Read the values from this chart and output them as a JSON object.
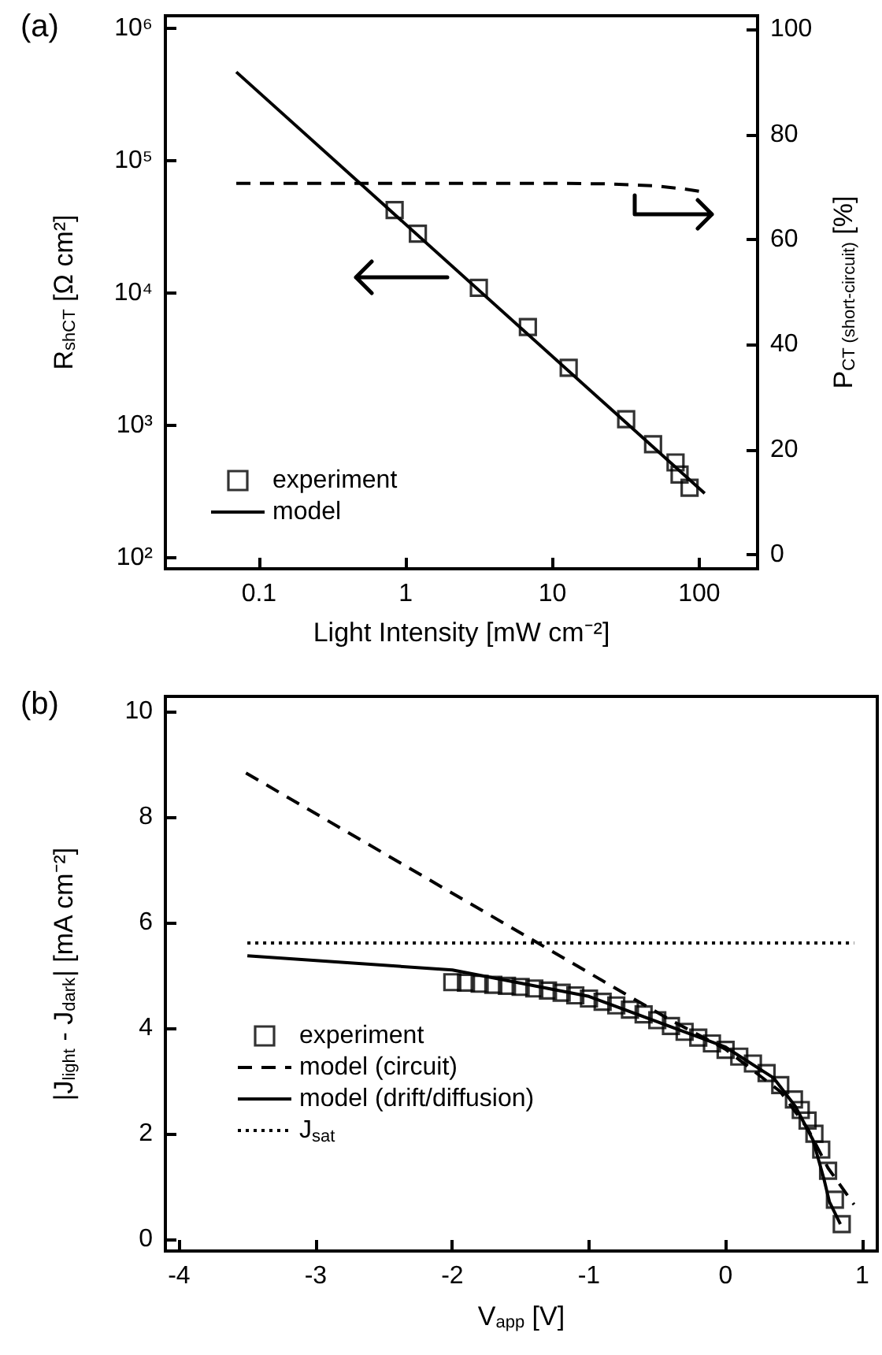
{
  "chart_data": [
    {
      "type": "line",
      "title": "(a)",
      "xlabel": "Light Intensity [mW cm⁻²]",
      "ylabel": "R$_{shCT}$ [Ω cm²]",
      "y2label": "P$_{CT (short-circuit)}$ [%]",
      "log": "xy",
      "grid": false,
      "legend": "bottom left",
      "xlim": [
        0.023,
        250
      ],
      "xticks": [
        0.1,
        1,
        10,
        100
      ],
      "ylim": [
        83,
        1250000
      ],
      "yticks": [
        {
          "value": 100,
          "label": "10²"
        },
        {
          "value": 1000,
          "label": "10³"
        },
        {
          "value": 10000,
          "label": "10⁴"
        },
        {
          "value": 100000,
          "label": "10⁵"
        },
        {
          "value": 1000000,
          "label": "10⁶"
        }
      ],
      "y2lim": [
        -2.7,
        102.6
      ],
      "y2ticks": [
        0,
        20,
        40,
        60,
        80,
        100
      ],
      "series": [
        {
          "name": "experiment",
          "type": "scatter",
          "marker": "square",
          "color": "#000000",
          "x": [
            0.84,
            1.21,
            3.15,
            6.8,
            12.9,
            31.8,
            48.5,
            69,
            73.5,
            86
          ],
          "values": [
            42600,
            28200,
            11000,
            5560,
            2740,
            1120,
            724,
            528,
            427,
            340
          ]
        },
        {
          "name": "model",
          "line_style": "solid",
          "color": "#000000",
          "x": [
            0.07,
            109
          ],
          "values": [
            470000,
            308
          ]
        },
        {
          "axis": "y2",
          "line_style": "dashed",
          "color": "#000000",
          "x": [
            0.07,
            10,
            22.5,
            50,
            80,
            109
          ],
          "values": [
            70.7,
            70.7,
            70.6,
            70.2,
            69.6,
            69
          ]
        }
      ]
    },
    {
      "type": "line",
      "title": "(b)",
      "xlabel": "V$_{app}$ [V]",
      "ylabel": "|J$_{light}$ - J$_{dark}$| [mA cm⁻²]",
      "grid": false,
      "legend": "bottom left",
      "xlim": [
        -4.1,
        1.11
      ],
      "xticks": [
        -4,
        -3,
        -2,
        -1,
        0,
        1
      ],
      "ylim": [
        -0.22,
        10.28
      ],
      "yticks": [
        0,
        2,
        4,
        6,
        8,
        10
      ],
      "series": [
        {
          "name": "experiment",
          "type": "scatter",
          "marker": "square",
          "color": "#000000",
          "x": [
            -2.0,
            -1.9,
            -1.8,
            -1.7,
            -1.6,
            -1.5,
            -1.4,
            -1.3,
            -1.2,
            -1.1,
            -1.0,
            -0.9,
            -0.8,
            -0.7,
            -0.6,
            -0.5,
            -0.4,
            -0.3,
            -0.2,
            -0.1,
            0.0,
            0.1,
            0.2,
            0.3,
            0.4,
            0.5,
            0.55,
            0.6,
            0.65,
            0.7,
            0.75,
            0.8,
            0.85
          ],
          "values": [
            4.87,
            4.86,
            4.84,
            4.82,
            4.8,
            4.78,
            4.75,
            4.71,
            4.67,
            4.62,
            4.56,
            4.5,
            4.43,
            4.35,
            4.26,
            4.15,
            4.04,
            3.93,
            3.82,
            3.71,
            3.59,
            3.46,
            3.33,
            3.15,
            2.92,
            2.65,
            2.45,
            2.25,
            2.0,
            1.7,
            1.3,
            0.75,
            0.29
          ]
        },
        {
          "name": "model (circuit)",
          "line_style": "dashed",
          "color": "#000000",
          "x": [
            -3.51,
            -0.67,
            -0.4,
            0.0,
            0.4,
            0.6,
            0.75,
            0.94
          ],
          "values": [
            8.83,
            4.55,
            4.15,
            3.6,
            2.8,
            2.1,
            1.35,
            0.66
          ]
        },
        {
          "name": "model (drift/diffusion)",
          "line_style": "solid",
          "color": "#000000",
          "x": [
            -3.5,
            -2.0,
            -1.0,
            0.0,
            0.35,
            0.51,
            0.64,
            0.72,
            0.76,
            0.84
          ],
          "values": [
            5.37,
            5.1,
            4.6,
            3.64,
            3.06,
            2.52,
            1.88,
            1.14,
            0.71,
            0.29
          ]
        },
        {
          "name": "J$_{sat}$",
          "line_style": "dotted",
          "color": "#000000",
          "x": [
            -3.5,
            0.94
          ],
          "values": [
            5.61,
            5.61
          ]
        }
      ]
    }
  ]
}
